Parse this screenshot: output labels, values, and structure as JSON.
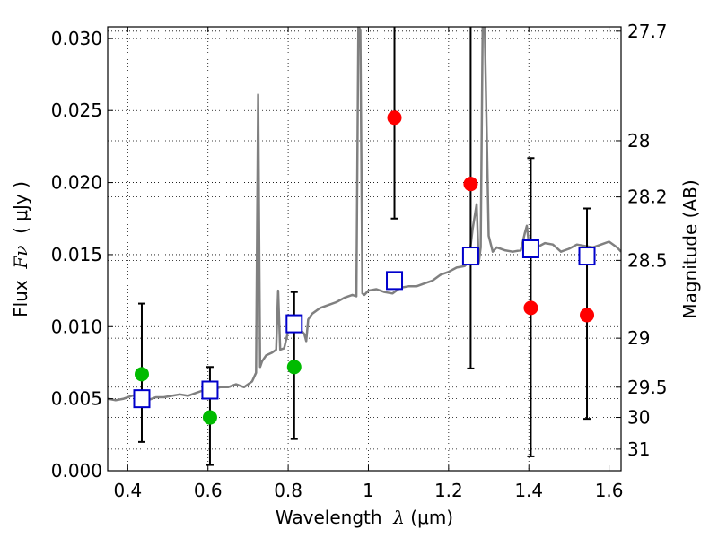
{
  "chart_data": {
    "type": "scatter",
    "xlim": [
      0.35,
      1.63
    ],
    "ylim": [
      0.0,
      0.0308
    ],
    "grid": true,
    "x_ticks": [
      0.4,
      0.6,
      0.8,
      1.0,
      1.2,
      1.4,
      1.6
    ],
    "x_tick_labels": [
      "0.4",
      "0.6",
      "0.8",
      "1",
      "1.2",
      "1.4",
      "1.6"
    ],
    "y_ticks": [
      0.0,
      0.005,
      0.01,
      0.015,
      0.02,
      0.025,
      0.03
    ],
    "y_tick_labels": [
      "0.000",
      "0.005",
      "0.010",
      "0.015",
      "0.020",
      "0.025",
      "0.030"
    ],
    "right_axis": {
      "label": "Magnitude (AB)",
      "tick_labels": [
        "27.7",
        "28",
        "28.2",
        "28.5",
        "29",
        "29.5",
        "30",
        "31"
      ],
      "tick_flux": [
        0.0305,
        0.0229,
        0.019,
        0.0146,
        0.0092,
        0.0058,
        0.0037,
        0.0015
      ]
    },
    "xlabel": {
      "pre": "Wavelength  ",
      "sym": "λ",
      "post": " (μm)"
    },
    "ylabel": {
      "pre": "Flux  ",
      "sym": "Fν",
      "post": "  ( μJy )"
    },
    "series": [
      {
        "kind": "spectrum",
        "color": "#808080",
        "x": [
          0.35,
          0.37,
          0.39,
          0.41,
          0.43,
          0.45,
          0.47,
          0.49,
          0.51,
          0.53,
          0.55,
          0.57,
          0.59,
          0.61,
          0.63,
          0.65,
          0.67,
          0.69,
          0.71,
          0.72,
          0.725,
          0.73,
          0.735,
          0.745,
          0.76,
          0.77,
          0.775,
          0.78,
          0.79,
          0.8,
          0.81,
          0.82,
          0.83,
          0.84,
          0.845,
          0.85,
          0.86,
          0.88,
          0.9,
          0.92,
          0.94,
          0.96,
          0.97,
          0.975,
          0.98,
          0.985,
          0.99,
          1.0,
          1.02,
          1.04,
          1.06,
          1.08,
          1.1,
          1.12,
          1.14,
          1.16,
          1.18,
          1.2,
          1.22,
          1.24,
          1.25,
          1.26,
          1.27,
          1.275,
          1.28,
          1.285,
          1.29,
          1.3,
          1.31,
          1.32,
          1.34,
          1.36,
          1.38,
          1.39,
          1.395,
          1.4,
          1.42,
          1.44,
          1.46,
          1.48,
          1.5,
          1.52,
          1.54,
          1.56,
          1.58,
          1.6,
          1.62,
          1.63
        ],
        "y": [
          0.005,
          0.0049,
          0.005,
          0.0052,
          0.0053,
          0.0049,
          0.0051,
          0.0051,
          0.0052,
          0.0053,
          0.0052,
          0.0054,
          0.0056,
          0.0056,
          0.0058,
          0.0058,
          0.006,
          0.0058,
          0.0062,
          0.0068,
          0.0261,
          0.0072,
          0.0076,
          0.008,
          0.0082,
          0.0084,
          0.0125,
          0.0084,
          0.0085,
          0.0097,
          0.0099,
          0.0102,
          0.0098,
          0.0095,
          0.009,
          0.0105,
          0.0109,
          0.0113,
          0.0115,
          0.0117,
          0.012,
          0.0122,
          0.0121,
          0.0308,
          0.0306,
          0.0123,
          0.0122,
          0.0125,
          0.0126,
          0.0124,
          0.0123,
          0.0127,
          0.0128,
          0.0128,
          0.013,
          0.0132,
          0.0136,
          0.0138,
          0.0141,
          0.0142,
          0.0145,
          0.0168,
          0.0185,
          0.0144,
          0.0155,
          0.0308,
          0.0308,
          0.0163,
          0.0152,
          0.0155,
          0.0153,
          0.0152,
          0.0153,
          0.0165,
          0.017,
          0.0158,
          0.0155,
          0.0158,
          0.0157,
          0.0152,
          0.0154,
          0.0157,
          0.0156,
          0.0155,
          0.0157,
          0.0159,
          0.0155,
          0.0152
        ]
      },
      {
        "kind": "model-squares",
        "color": "#0000cc",
        "x": [
          0.435,
          0.605,
          0.815,
          1.065,
          1.255,
          1.405,
          1.545
        ],
        "y": [
          0.005,
          0.0056,
          0.0102,
          0.0132,
          0.0149,
          0.0154,
          0.0149
        ]
      },
      {
        "kind": "green-points",
        "color": "#00bb00",
        "x": [
          0.435,
          0.605,
          0.815
        ],
        "y": [
          0.0067,
          0.0037,
          0.0072
        ]
      },
      {
        "kind": "red-points",
        "color": "#ff0000",
        "x": [
          1.065,
          1.255,
          1.405,
          1.545
        ],
        "y": [
          0.0245,
          0.0199,
          0.0113,
          0.0108
        ]
      },
      {
        "kind": "error-bars",
        "color": "#000000",
        "x": [
          0.435,
          0.605,
          0.815,
          1.065,
          1.255,
          1.405,
          1.545
        ],
        "low": [
          0.002,
          0.0004,
          0.0022,
          0.0175,
          0.0071,
          0.001,
          0.0036
        ],
        "high": [
          0.0116,
          0.0072,
          0.0124,
          0.0315,
          0.0315,
          0.0217,
          0.0182
        ]
      }
    ]
  }
}
